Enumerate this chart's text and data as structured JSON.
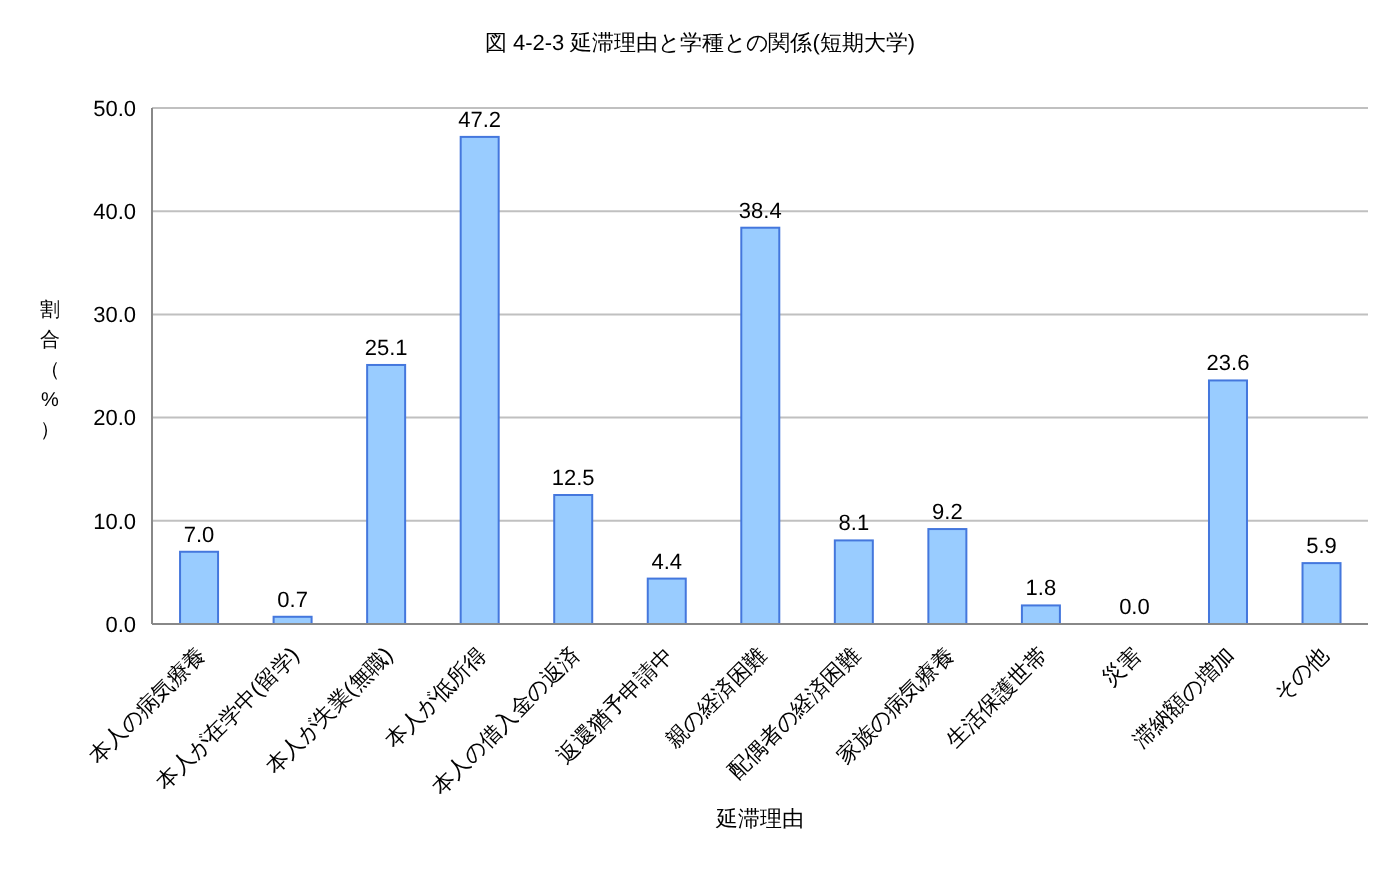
{
  "chart_data": {
    "type": "bar",
    "title": "図 4-2-3 延滞理由と学種との関係(短期大学)",
    "xlabel": "延滞理由",
    "ylabel": "割合（%）",
    "categories": [
      "本人の病気療養",
      "本人が在学中(留学)",
      "本人が失業(無職)",
      "本人が低所得",
      "本人の借入金の返済",
      "返還猶予申請中",
      "親の経済困難",
      "配偶者の経済困難",
      "家族の病気療養",
      "生活保護世帯",
      "災害",
      "滞納額の増加",
      "その他"
    ],
    "values": [
      7.0,
      0.7,
      25.1,
      47.2,
      12.5,
      4.4,
      38.4,
      8.1,
      9.2,
      1.8,
      0.0,
      23.6,
      5.9
    ],
    "value_labels": [
      "7.0",
      "0.7",
      "25.1",
      "47.2",
      "12.5",
      "4.4",
      "38.4",
      "8.1",
      "9.2",
      "1.8",
      "0.0",
      "23.6",
      "5.9"
    ],
    "color": "#99ccff",
    "ylim": [
      0,
      50
    ],
    "yticks": [
      {
        "value": 0,
        "label": "0.0"
      },
      {
        "value": 10,
        "label": "10.0"
      },
      {
        "value": 20,
        "label": "20.0"
      },
      {
        "value": 30,
        "label": "30.0"
      },
      {
        "value": 40,
        "label": "40.0"
      },
      {
        "value": 50,
        "label": "50.0"
      }
    ],
    "grid": "y"
  }
}
